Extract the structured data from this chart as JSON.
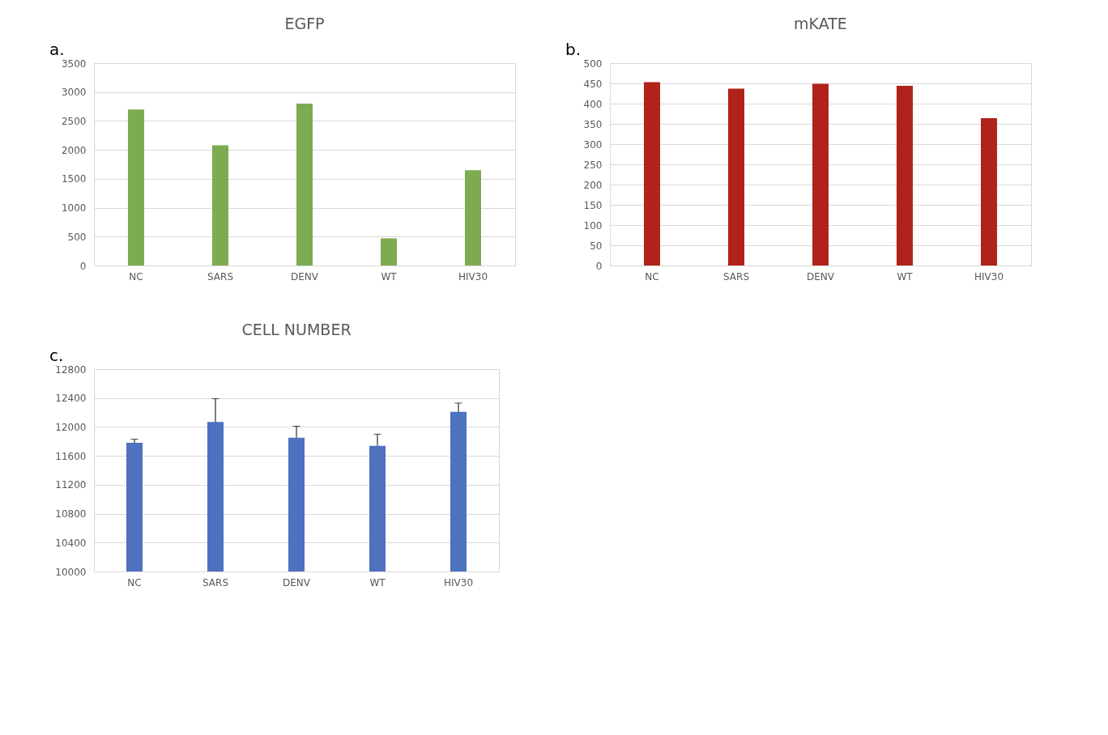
{
  "chart_data": [
    {
      "type": "bar",
      "title": "EGFP",
      "annotations": [
        "a."
      ],
      "categories": [
        "NC",
        "SARS",
        "DENV",
        "WT",
        "HIV30"
      ],
      "series": [
        {
          "color": "#7dab52",
          "values": [
            2700,
            2080,
            2800,
            470,
            1650
          ]
        }
      ],
      "ylim": [
        0,
        3500
      ],
      "yticks": [
        0,
        500,
        1000,
        1500,
        2000,
        2500,
        3000,
        3500
      ],
      "grid": "y"
    },
    {
      "type": "bar",
      "title": "mKATE",
      "annotations": [
        "b."
      ],
      "categories": [
        "NC",
        "SARS",
        "DENV",
        "WT",
        "HIV30"
      ],
      "series": [
        {
          "color": "#b0231a",
          "values": [
            453,
            437,
            449,
            444,
            364
          ]
        }
      ],
      "ylim": [
        0,
        500
      ],
      "yticks": [
        0,
        50,
        100,
        150,
        200,
        250,
        300,
        350,
        400,
        450,
        500
      ],
      "grid": "y"
    },
    {
      "type": "bar",
      "title": "CELL NUMBER",
      "annotations": [
        "c."
      ],
      "categories": [
        "NC",
        "SARS",
        "DENV",
        "WT",
        "HIV30"
      ],
      "series": [
        {
          "color": "#4e71c0",
          "values": [
            11780,
            12070,
            11850,
            11740,
            12210
          ],
          "errors": [
            [
              11780,
              11830
            ],
            [
              12070,
              12390
            ],
            [
              11850,
              12010
            ],
            [
              11740,
              11900
            ],
            [
              12210,
              12330
            ]
          ]
        }
      ],
      "ylim": [
        10000,
        12800
      ],
      "yticks": [
        10000,
        10400,
        10800,
        11200,
        11600,
        12000,
        12400,
        12800
      ],
      "grid": "y"
    }
  ]
}
